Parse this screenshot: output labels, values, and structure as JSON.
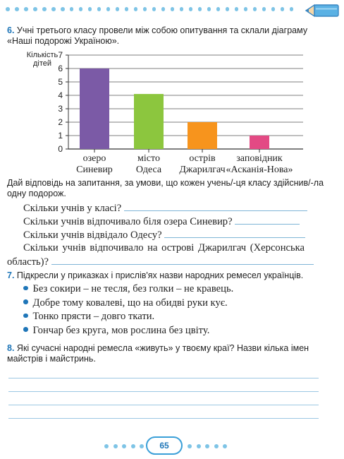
{
  "task6": {
    "number": "6.",
    "line1": "Учні третього класу провели між собою опитування та склали діаграму",
    "line2": "«Наші подорожі Україною».",
    "instruction_line1": "Дай відповідь на запитання, за умови, що кожен учень/-ця класу здійснив/-ла",
    "instruction_line2": "одну подорож.",
    "questions": [
      "Скільки учнів у класі?",
      "Скільки учнів відпочивало біля озера Синевир?",
      "Скільки учнів відвідало Одесу?",
      "Скільки учнів відпочивало на острові Джарилгач (Херсонська",
      "область)?"
    ]
  },
  "chart_data": {
    "type": "bar",
    "ylabel_line1": "Кількість",
    "ylabel_line2": "дітей",
    "ylim": [
      0,
      7
    ],
    "yticks": [
      "0",
      "1",
      "2",
      "3",
      "4",
      "5",
      "6",
      "7"
    ],
    "grid": true,
    "categories": [
      {
        "line1": "озеро",
        "line2": "Синевир"
      },
      {
        "line1": "місто",
        "line2": "Одеса"
      },
      {
        "line1": "острів",
        "line2": "Джарилгач"
      },
      {
        "line1": "заповідник",
        "line2": "«Асканія-Нова»"
      }
    ],
    "values": [
      6,
      4.1,
      2,
      1
    ],
    "colors": [
      "#7b5aa6",
      "#8cc63e",
      "#f7941d",
      "#e34a84"
    ]
  },
  "task7": {
    "number": "7.",
    "text": "Підкресли у приказках і прислів'ях назви народних ремесел українців.",
    "proverbs": [
      "Без сокири – не тесля, без голки – не кравець.",
      "Добре тому ковалеві, що на обидві руки кує.",
      "Тонко прясти – довго ткати.",
      "Гончар без круга, мов рослина без цвіту."
    ]
  },
  "task8": {
    "number": "8.",
    "line1": "Які сучасні народні ремесла «живуть» у твоєму краї? Назви кілька імен",
    "line2": "майстрів і майстринь."
  },
  "page_number": "65",
  "colors": {
    "accent": "#1f76b8",
    "dots": "#7ec4e6",
    "lines": "#9cc7e3"
  }
}
